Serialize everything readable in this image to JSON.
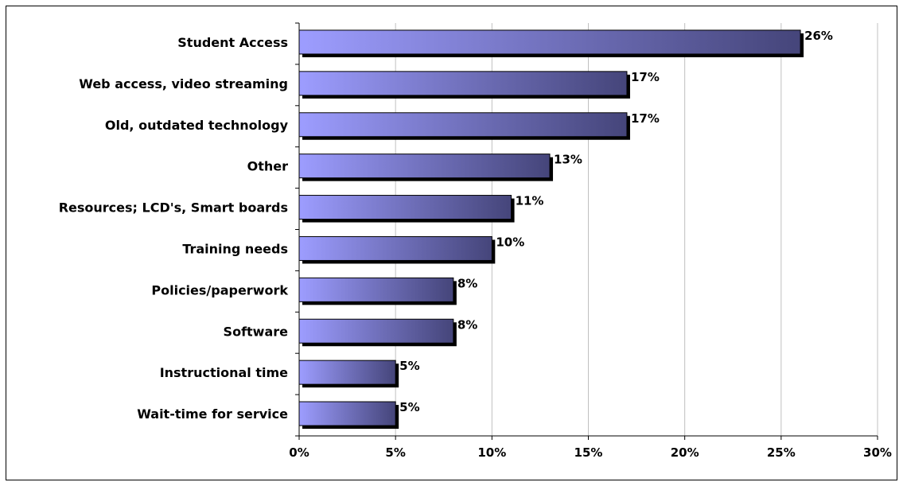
{
  "chart_data": {
    "type": "bar",
    "orientation": "horizontal",
    "categories": [
      "Student Access",
      "Web access, video streaming",
      "Old, outdated technology",
      "Other",
      "Resources; LCD's, Smart boards",
      "Training needs",
      "Policies/paperwork",
      "Software",
      "Instructional time",
      "Wait-time for service"
    ],
    "values": [
      26,
      17,
      17,
      13,
      11,
      10,
      8,
      8,
      5,
      5
    ],
    "data_labels": [
      "26%",
      "17%",
      "17%",
      "13%",
      "11%",
      "10%",
      "8%",
      "8%",
      "5%",
      "5%"
    ],
    "x_ticks": [
      0,
      5,
      10,
      15,
      20,
      25,
      30
    ],
    "x_tick_labels": [
      "0%",
      "5%",
      "10%",
      "15%",
      "20%",
      "25%",
      "30%"
    ],
    "xlim": [
      0,
      30
    ],
    "title": "",
    "xlabel": "",
    "ylabel": "",
    "grid": "vertical",
    "legend": "none",
    "colors": {
      "bar_start": "#9d9dff",
      "bar_end": "#45457a",
      "bar_shadow": "#000000",
      "grid": "#c0c0c0",
      "axis": "#000000"
    }
  }
}
